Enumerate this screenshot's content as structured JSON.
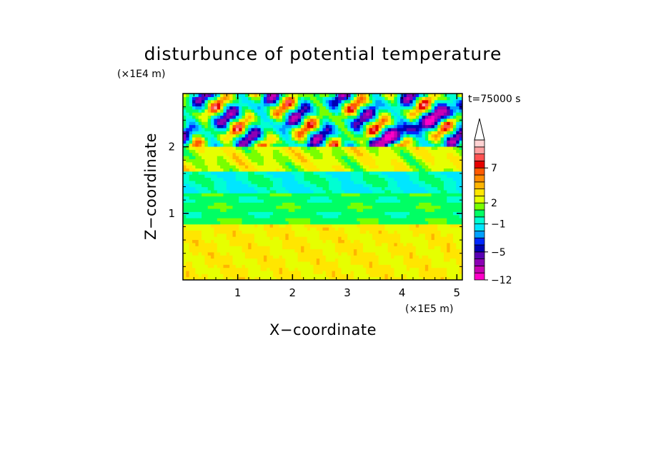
{
  "chart_data": {
    "type": "heatmap",
    "title": "disturbunce of potential temperature",
    "time_label": "t=75000 s",
    "xlabel": "X−coordinate",
    "ylabel": "Z−coordinate",
    "x_unit": "(×1E5 m)",
    "y_unit": "(×1E4 m)",
    "xlim": [
      0,
      5.1
    ],
    "ylim": [
      0,
      2.8
    ],
    "x_ticks": [
      1,
      2,
      3,
      4,
      5
    ],
    "y_ticks": [
      1,
      2
    ],
    "x_minor_step": 0.2,
    "y_minor_step": 0.2,
    "colorbar": {
      "min": -12,
      "levels": [
        -12,
        -10,
        -8,
        -6,
        -5,
        -4,
        -3,
        -2,
        -1,
        0,
        1,
        2,
        3,
        4,
        5,
        6,
        7,
        8,
        9,
        10,
        11
      ],
      "colors": [
        "#ff00c8",
        "#c800b4",
        "#8c00b4",
        "#5a00b4",
        "#0000b4",
        "#0028ff",
        "#00a0ff",
        "#00e6ff",
        "#00ffd2",
        "#00ff64",
        "#78ff00",
        "#e6ff00",
        "#ffe600",
        "#ffb400",
        "#ff8c00",
        "#ff5a00",
        "#e60000",
        "#ff5050",
        "#ffa0a0",
        "#ffd2d2"
      ],
      "tick_labels": [
        {
          "label": "−12",
          "value": -12
        },
        {
          "label": "−5",
          "value": -5
        },
        {
          "label": "−1",
          "value": -1
        },
        {
          "label": "2",
          "value": 2
        },
        {
          "label": "7",
          "value": 7
        }
      ],
      "extend": "max"
    }
  }
}
